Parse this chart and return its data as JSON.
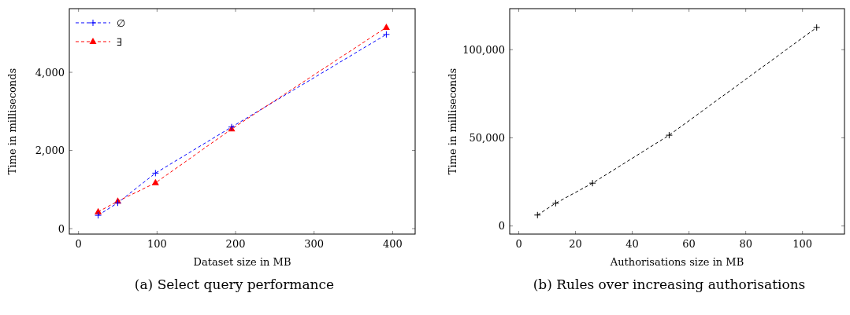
{
  "chart_data": [
    {
      "type": "line",
      "title": "(a) Select query performance",
      "xlabel": "Dataset size in MB",
      "ylabel": "Time in milliseconds",
      "x": [
        25,
        50,
        98,
        195,
        392
      ],
      "series": [
        {
          "name": "∅",
          "color": "#0000ff",
          "marker": "cross",
          "values": [
            340,
            660,
            1420,
            2600,
            4970
          ]
        },
        {
          "name": "∃",
          "color": "#ff0000",
          "marker": "triangle",
          "values": [
            430,
            700,
            1170,
            2550,
            5150
          ]
        }
      ],
      "xlim": [
        -11.7,
        428.7
      ],
      "xticks": [
        0,
        100,
        200,
        300,
        400
      ],
      "ylim": [
        -140,
        5630
      ],
      "yticks": [
        0,
        {
          "value": 2000,
          "label": "2,000"
        },
        {
          "value": 4000,
          "label": "4,000"
        }
      ],
      "legend": "top left",
      "line_style": "dashed",
      "grid": false
    },
    {
      "type": "line",
      "title": "(b) Rules over increasing authorisations",
      "xlabel": "Authorisations size in MB",
      "ylabel": "Time in milliseconds",
      "x": [
        6.6,
        13,
        26,
        53,
        105
      ],
      "series": [
        {
          "color": "#000000",
          "marker": "cross",
          "values": [
            6200,
            12900,
            24300,
            51500,
            112600
          ]
        }
      ],
      "xlim": [
        -3.2,
        114.8
      ],
      "xticks": [
        0,
        20,
        40,
        60,
        80,
        100
      ],
      "ylim": [
        -4600,
        123300
      ],
      "yticks": [
        0,
        {
          "value": 50000,
          "label": "50,000"
        },
        {
          "value": 100000,
          "label": "100,000"
        }
      ],
      "legend": false,
      "line_style": "dashed",
      "grid": false
    }
  ]
}
